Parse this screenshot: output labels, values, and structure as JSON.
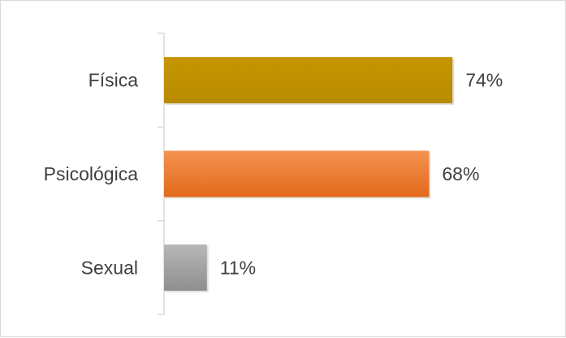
{
  "chart_data": {
    "type": "bar",
    "orientation": "horizontal",
    "categories": [
      "Física",
      "Psicológica",
      "Sexual"
    ],
    "values": [
      74,
      68,
      11
    ],
    "value_labels": [
      "74%",
      "68%",
      "11%"
    ],
    "xlim": [
      0,
      100
    ],
    "grid": false,
    "legend": "none",
    "colors": {
      "Física": "#c09000",
      "Psicológica": "#ed7d31",
      "Sexual": "#a5a5a5"
    },
    "gradients": {
      "Física": [
        "#c59500",
        "#b88a00"
      ],
      "Psicológica": [
        "#f39350",
        "#e26a1c"
      ],
      "Sexual": [
        "#b8b8b8",
        "#8e8e8e"
      ]
    },
    "axis_color": "#d9d9d9",
    "label_color": "#404040"
  }
}
